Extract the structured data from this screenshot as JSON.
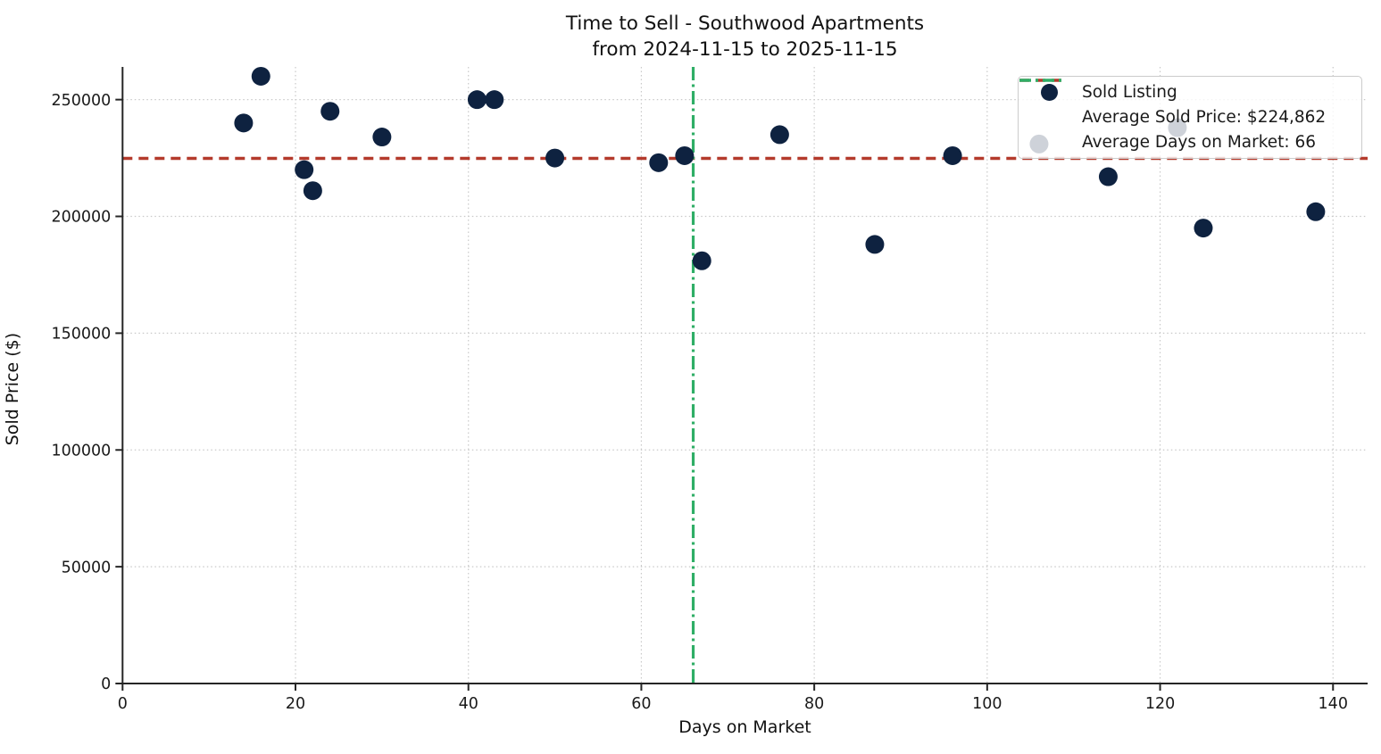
{
  "figure": {
    "title_line1": "Time to Sell - Southwood Apartments",
    "title_line2": "from 2024-11-15 to 2025-11-15"
  },
  "chart_data": {
    "type": "scatter",
    "title": "Time to Sell - Southwood Apartments\nfrom 2024-11-15 to 2025-11-15",
    "xlabel": "Days on Market",
    "ylabel": "Sold Price ($)",
    "xlim": [
      0,
      144
    ],
    "ylim": [
      0,
      264000
    ],
    "x_ticks": [
      0,
      20,
      40,
      60,
      80,
      100,
      120,
      140
    ],
    "y_ticks": [
      0,
      50000,
      100000,
      150000,
      200000,
      250000
    ],
    "grid": true,
    "grid_style": "dotted",
    "legend_position": "upper right",
    "series": [
      {
        "name": "Sold Listing",
        "points": [
          [
            14,
            240000
          ],
          [
            16,
            260000
          ],
          [
            21,
            220000
          ],
          [
            22,
            211000
          ],
          [
            24,
            245000
          ],
          [
            30,
            234000
          ],
          [
            41,
            250000
          ],
          [
            43,
            250000
          ],
          [
            50,
            225000
          ],
          [
            62,
            223000
          ],
          [
            65,
            226000
          ],
          [
            67,
            181000
          ],
          [
            76,
            235000
          ],
          [
            87,
            188000
          ],
          [
            96,
            226000
          ],
          [
            106,
            231000
          ],
          [
            114,
            217000
          ],
          [
            122,
            238000
          ],
          [
            125,
            195000
          ],
          [
            138,
            202000
          ]
        ]
      }
    ],
    "average_sold_price": 224862,
    "average_days_on_market": 66,
    "colors": {
      "marker": "#0e2240",
      "avg_price_line": "#b43a2c",
      "avg_days_line": "#2fae66",
      "grid": "#c9c9c9",
      "spine": "#262626",
      "tick_label": "#1a1a1a"
    }
  },
  "legend": {
    "items": [
      {
        "label": "Sold Listing",
        "marker": "dot"
      },
      {
        "label": "Average Sold Price: $224,862",
        "marker": "dashed-line"
      },
      {
        "label": "Average Days on Market: 66",
        "marker": "dashdot-line"
      }
    ]
  }
}
